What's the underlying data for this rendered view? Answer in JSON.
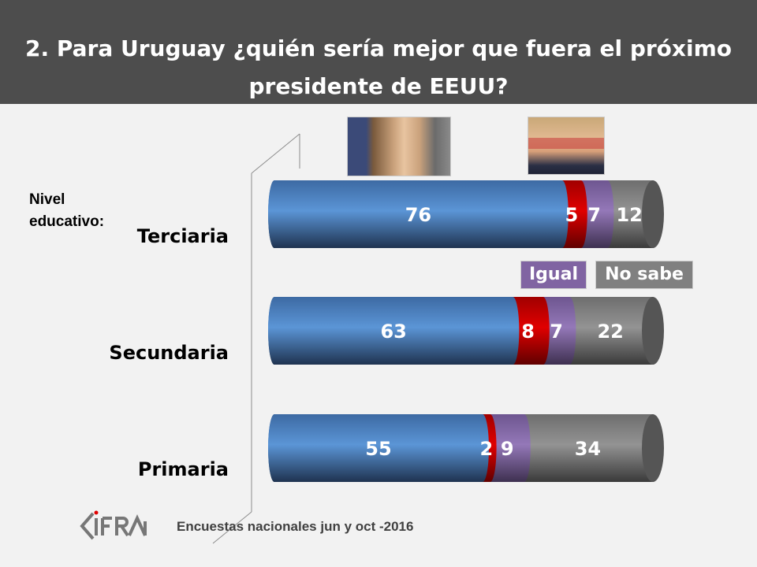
{
  "header": {
    "title_line1": "2. Para Uruguay ¿quién sería mejor que fuera el próximo",
    "title_line2": "presidente de EEUU?"
  },
  "photos": [
    {
      "name": "clinton-photo",
      "subject": "Hillary Clinton"
    },
    {
      "name": "trump-photo",
      "subject": "Donald Trump"
    }
  ],
  "axis_label": {
    "line1": "Nivel",
    "line2": "educativo:"
  },
  "legend": {
    "igual": "Igual",
    "no_sabe": "No sabe"
  },
  "footer": {
    "source": "Encuestas nacionales jun y oct -2016",
    "logo": "CIFRA"
  },
  "colors": {
    "clinton": "#4f81bd",
    "trump": "#c00000",
    "igual": "#8064a2",
    "no_sabe": "#808080",
    "header_bg": "#4d4d4d",
    "background": "#f2f2f2"
  },
  "chart_data": {
    "type": "bar",
    "orientation": "horizontal",
    "stacked": true,
    "style": "3d-cylinder",
    "title": "2. Para Uruguay ¿quién sería mejor que fuera el próximo presidente de EEUU?",
    "ylabel": "Nivel educativo:",
    "categories": [
      "Terciaria",
      "Secundaria",
      "Primaria"
    ],
    "series": [
      {
        "name": "Clinton",
        "values": [
          76,
          63,
          55
        ]
      },
      {
        "name": "Trump",
        "values": [
          5,
          8,
          2
        ]
      },
      {
        "name": "Igual",
        "values": [
          7,
          7,
          9
        ]
      },
      {
        "name": "No sabe",
        "values": [
          12,
          22,
          34
        ]
      }
    ],
    "xlim": [
      0,
      100
    ],
    "grid": false,
    "legend_position": "inline-right"
  }
}
